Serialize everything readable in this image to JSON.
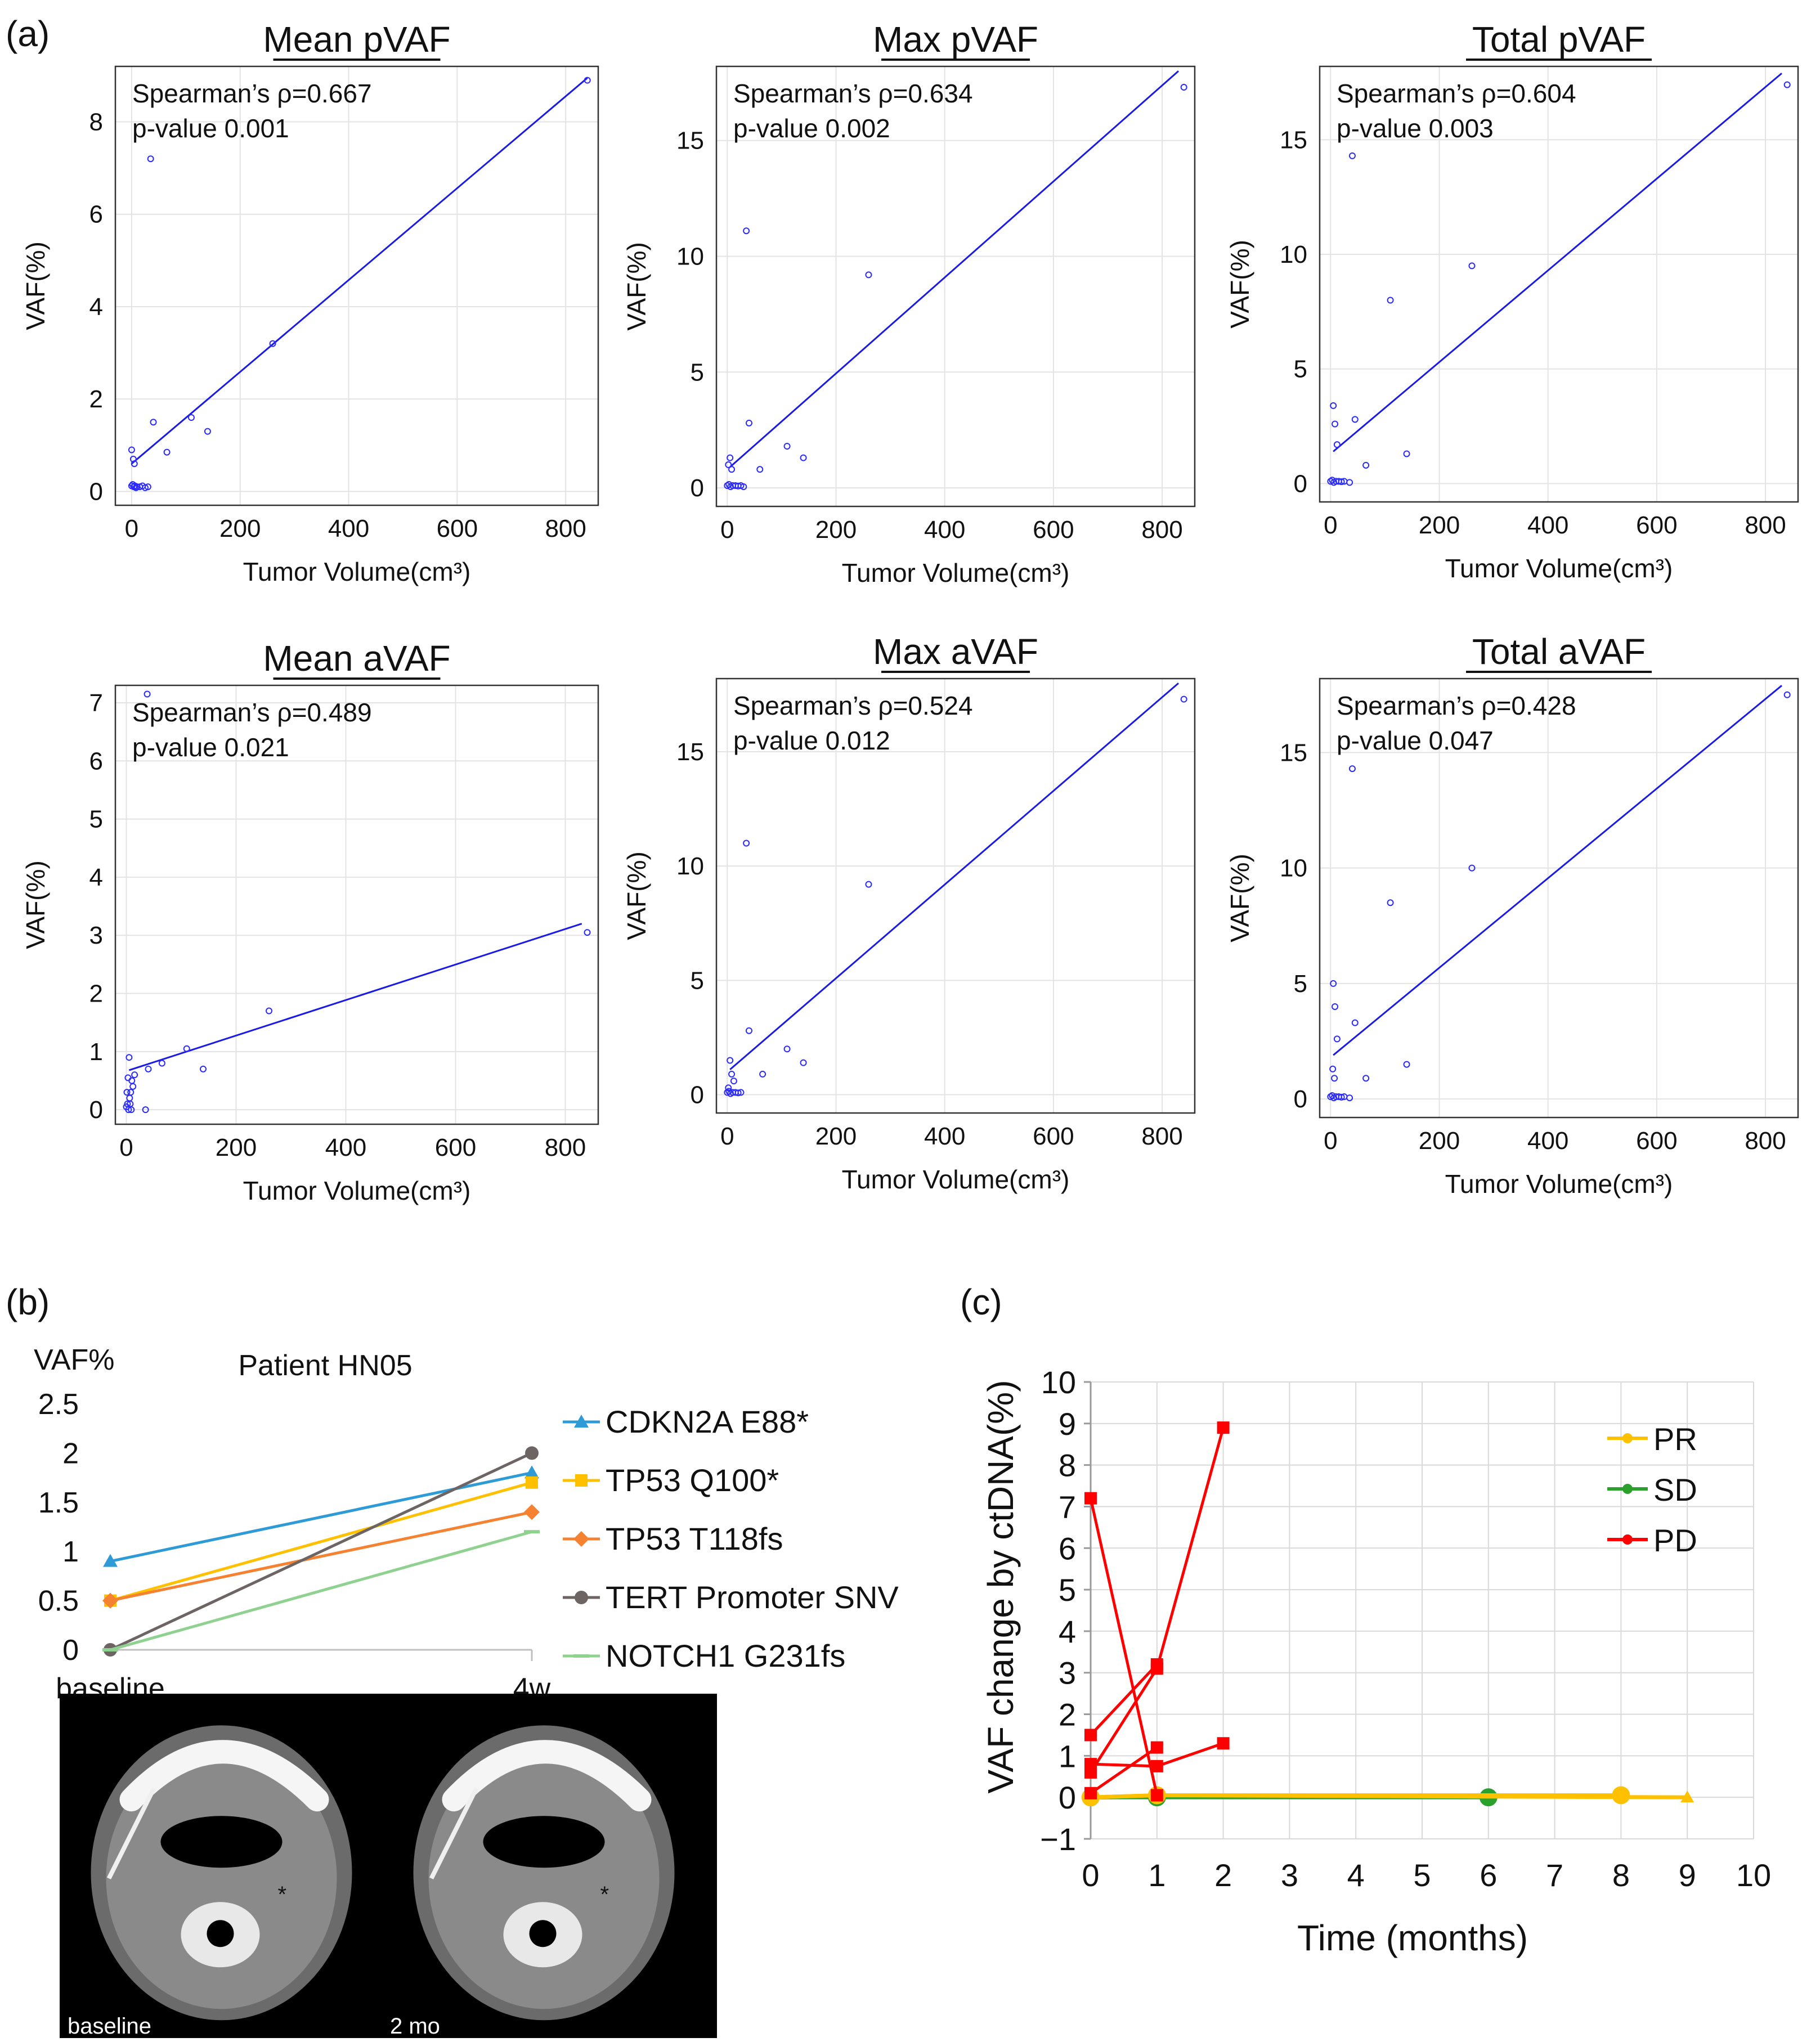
{
  "panel_labels": {
    "a": "(a)",
    "b": "(b)",
    "c": "(c)"
  },
  "chart_data": [
    {
      "type": "scatter",
      "title": "Mean pVAF",
      "xlabel": "Tumor Volume(cm³)",
      "ylabel": "VAF(%)",
      "xlim": [
        -30,
        860
      ],
      "ylim": [
        -0.3,
        9.2
      ],
      "xticks": [
        0,
        200,
        400,
        600,
        800
      ],
      "yticks": [
        0,
        2,
        4,
        6,
        8
      ],
      "annotation": [
        "Spearman’s ρ=0.667",
        "p-value 0.001"
      ],
      "fit": {
        "x": [
          0,
          840
        ],
        "y": [
          0.6,
          8.95
        ]
      },
      "points": {
        "x": [
          0,
          2,
          4,
          6,
          8,
          10,
          15,
          20,
          25,
          30,
          5,
          0,
          3,
          35,
          40,
          65,
          110,
          140,
          260,
          840
        ],
        "y": [
          0.12,
          0.15,
          0.1,
          0.12,
          0.08,
          0.1,
          0.1,
          0.12,
          0.08,
          0.1,
          0.6,
          0.9,
          0.7,
          7.2,
          1.5,
          0.85,
          1.6,
          1.3,
          3.2,
          8.9
        ]
      }
    },
    {
      "type": "scatter",
      "title": "Max pVAF",
      "xlabel": "Tumor Volume(cm³)",
      "ylabel": "VAF(%)",
      "xlim": [
        -20,
        860
      ],
      "ylim": [
        -0.8,
        18.2
      ],
      "xticks": [
        0,
        200,
        400,
        600,
        800
      ],
      "yticks": [
        0,
        5,
        10,
        15
      ],
      "annotation": [
        "Spearman’s ρ=0.634",
        "p-value 0.002"
      ],
      "fit": {
        "x": [
          5,
          830
        ],
        "y": [
          0.9,
          18.0
        ]
      },
      "points": {
        "x": [
          0,
          3,
          6,
          10,
          15,
          20,
          25,
          30,
          5,
          2,
          8,
          35,
          40,
          60,
          110,
          140,
          260,
          840
        ],
        "y": [
          0.1,
          0.15,
          0.05,
          0.1,
          0.1,
          0.08,
          0.1,
          0.05,
          1.3,
          1.0,
          0.8,
          11.1,
          2.8,
          0.8,
          1.8,
          1.3,
          9.2,
          17.3
        ]
      }
    },
    {
      "type": "scatter",
      "title": "Total pVAF",
      "xlabel": "Tumor Volume(cm³)",
      "ylabel": "VAF(%)",
      "xlim": [
        -20,
        860
      ],
      "ylim": [
        -0.8,
        18.2
      ],
      "xticks": [
        0,
        200,
        400,
        600,
        800
      ],
      "yticks": [
        0,
        5,
        10,
        15
      ],
      "annotation": [
        "Spearman’s ρ=0.604",
        "p-value 0.003"
      ],
      "fit": {
        "x": [
          5,
          830
        ],
        "y": [
          1.4,
          17.9
        ]
      },
      "points": {
        "x": [
          0,
          3,
          6,
          10,
          15,
          20,
          25,
          35,
          5,
          8,
          12,
          40,
          45,
          65,
          110,
          140,
          260,
          840
        ],
        "y": [
          0.1,
          0.15,
          0.05,
          0.1,
          0.1,
          0.08,
          0.1,
          0.05,
          3.4,
          2.6,
          1.7,
          14.3,
          2.8,
          0.8,
          8.0,
          1.3,
          9.5,
          17.4
        ]
      }
    },
    {
      "type": "scatter",
      "title": "Mean aVAF",
      "xlabel": "Tumor Volume(cm³)",
      "ylabel": "VAF(%)",
      "xlim": [
        -20,
        860
      ],
      "ylim": [
        -0.25,
        7.3
      ],
      "xticks": [
        0,
        200,
        400,
        600,
        800
      ],
      "yticks": [
        0,
        1,
        2,
        3,
        4,
        5,
        6,
        7
      ],
      "annotation": [
        "Spearman’s ρ=0.489",
        "p-value 0.021"
      ],
      "fit": {
        "x": [
          5,
          830
        ],
        "y": [
          0.68,
          3.2
        ]
      },
      "points": {
        "x": [
          0,
          2,
          4,
          6,
          8,
          10,
          12,
          15,
          5,
          3,
          1,
          7,
          9,
          35,
          40,
          65,
          110,
          140,
          260,
          840,
          38
        ],
        "y": [
          0.05,
          0.1,
          0.0,
          0.2,
          0.3,
          0.5,
          0.4,
          0.6,
          0.9,
          0.55,
          0.3,
          0.1,
          0.0,
          0.0,
          0.7,
          0.8,
          1.05,
          0.7,
          1.7,
          3.05,
          7.15
        ]
      }
    },
    {
      "type": "scatter",
      "title": "Max aVAF",
      "xlabel": "Tumor Volume(cm³)",
      "ylabel": "VAF(%)",
      "xlim": [
        -20,
        860
      ],
      "ylim": [
        -0.8,
        18.2
      ],
      "xticks": [
        0,
        200,
        400,
        600,
        800
      ],
      "yticks": [
        0,
        5,
        10,
        15
      ],
      "annotation": [
        "Spearman’s ρ=0.524",
        "p-value 0.012"
      ],
      "fit": {
        "x": [
          5,
          830
        ],
        "y": [
          1.1,
          18.0
        ]
      },
      "points": {
        "x": [
          0,
          3,
          6,
          10,
          15,
          20,
          25,
          5,
          8,
          12,
          2,
          35,
          40,
          65,
          110,
          140,
          260,
          840
        ],
        "y": [
          0.1,
          0.15,
          0.05,
          0.1,
          0.1,
          0.08,
          0.1,
          1.5,
          0.9,
          0.6,
          0.3,
          11.0,
          2.8,
          0.9,
          2.0,
          1.4,
          9.2,
          17.3
        ]
      }
    },
    {
      "type": "scatter",
      "title": "Total aVAF",
      "xlabel": "Tumor Volume(cm³)",
      "ylabel": "VAF(%)",
      "xlim": [
        -20,
        860
      ],
      "ylim": [
        -0.8,
        18.2
      ],
      "xticks": [
        0,
        200,
        400,
        600,
        800
      ],
      "yticks": [
        0,
        5,
        10,
        15
      ],
      "annotation": [
        "Spearman’s ρ=0.428",
        "p-value 0.047"
      ],
      "fit": {
        "x": [
          5,
          830
        ],
        "y": [
          1.9,
          17.9
        ]
      },
      "points": {
        "x": [
          0,
          3,
          6,
          10,
          15,
          20,
          25,
          35,
          5,
          8,
          12,
          4,
          7,
          40,
          45,
          65,
          110,
          140,
          260,
          840
        ],
        "y": [
          0.1,
          0.15,
          0.05,
          0.1,
          0.1,
          0.08,
          0.1,
          0.05,
          5.0,
          4.0,
          2.6,
          1.3,
          0.9,
          14.3,
          3.3,
          0.9,
          8.5,
          1.5,
          10.0,
          17.5
        ]
      }
    },
    {
      "type": "line",
      "title": "Patient HN05",
      "ylabel": "VAF%",
      "categories": [
        "baseline",
        "4w"
      ],
      "ylim": [
        0,
        2.5
      ],
      "yticks": [
        "0",
        "0.5",
        "1",
        "1.5",
        "2",
        "2.5"
      ],
      "series": [
        {
          "name": "CDKN2A E88*",
          "values": [
            0.9,
            1.8
          ],
          "color": "#2e9bd6",
          "marker": "triangle"
        },
        {
          "name": "TP53 Q100*",
          "values": [
            0.5,
            1.7
          ],
          "color": "#ffc000",
          "marker": "square"
        },
        {
          "name": "TP53 T118fs",
          "values": [
            0.5,
            1.4
          ],
          "color": "#f58231",
          "marker": "diamond"
        },
        {
          "name": "TERT Promoter SNV",
          "values": [
            0.0,
            2.0
          ],
          "color": "#6d6464",
          "marker": "circle"
        },
        {
          "name": "NOTCH1 G231fs",
          "values": [
            0.0,
            1.2
          ],
          "color": "#8fd18e",
          "marker": "dash"
        }
      ],
      "ct_images": [
        {
          "label": "baseline",
          "marker": "*"
        },
        {
          "label": "2 mo",
          "marker": "*"
        }
      ]
    },
    {
      "type": "line",
      "xlabel": "Time (months)",
      "ylabel": "VAF change by ctDNA(%)",
      "xlim": [
        0,
        10
      ],
      "ylim": [
        -1,
        10
      ],
      "xticks": [
        0,
        1,
        2,
        3,
        4,
        5,
        6,
        7,
        8,
        9,
        10
      ],
      "yticks": [
        -1,
        0,
        1,
        2,
        3,
        4,
        5,
        6,
        7,
        8,
        9,
        10
      ],
      "legend": [
        {
          "name": "PR",
          "color": "#ffc000"
        },
        {
          "name": "SD",
          "color": "#2ca02c"
        },
        {
          "name": "PD",
          "color": "#ff0000"
        }
      ],
      "series": [
        {
          "group": "PR",
          "color": "#ffc000",
          "marker": "triangle",
          "x": [
            0,
            1,
            9
          ],
          "y": [
            0,
            0.05,
            0
          ]
        },
        {
          "group": "PR",
          "color": "#ffc000",
          "marker": "circle",
          "x": [
            0,
            1,
            8
          ],
          "y": [
            0,
            0.05,
            0.05
          ]
        },
        {
          "group": "SD",
          "color": "#2ca02c",
          "marker": "circle",
          "x": [
            0,
            1,
            6
          ],
          "y": [
            0,
            0,
            0
          ]
        },
        {
          "group": "PD",
          "color": "#ff0000",
          "marker": "square",
          "x": [
            0,
            1,
            2
          ],
          "y": [
            0.6,
            3.1,
            8.9
          ]
        },
        {
          "group": "PD",
          "color": "#ff0000",
          "marker": "square",
          "x": [
            0,
            1
          ],
          "y": [
            7.2,
            0.05
          ]
        },
        {
          "group": "PD",
          "color": "#ff0000",
          "marker": "square",
          "x": [
            0,
            1,
            2
          ],
          "y": [
            0.8,
            0.75,
            1.3
          ]
        },
        {
          "group": "PD",
          "color": "#ff0000",
          "marker": "square",
          "x": [
            0,
            1
          ],
          "y": [
            1.5,
            3.2
          ]
        },
        {
          "group": "PD",
          "color": "#ff0000",
          "marker": "square",
          "x": [
            0,
            1
          ],
          "y": [
            0.1,
            1.2
          ]
        }
      ]
    }
  ]
}
